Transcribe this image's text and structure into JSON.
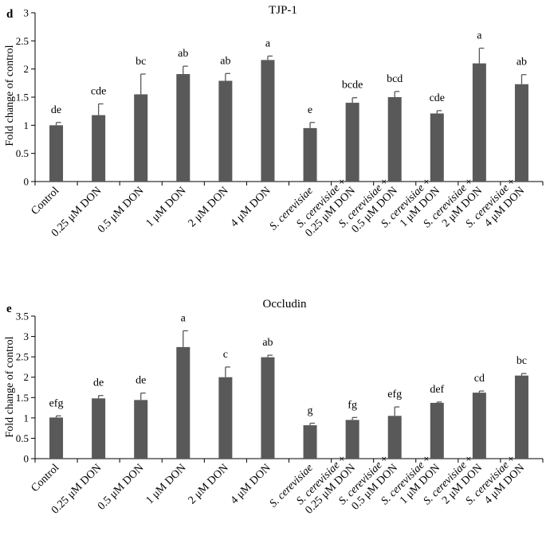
{
  "chart_data": [
    {
      "type": "bar",
      "panel_letter": "d",
      "title": "TJP-1",
      "ylabel": "Fold change of control",
      "ylim": [
        0,
        3
      ],
      "yticks": [
        "0",
        "0.5",
        "1",
        "1.5",
        "2",
        "2.5",
        "3"
      ],
      "grid": false,
      "bar_color": "#595959",
      "categories": [
        {
          "lines": [
            {
              "text": "Control",
              "italic": false
            }
          ]
        },
        {
          "lines": [
            {
              "text": "0.25 μM DON",
              "italic": false
            }
          ]
        },
        {
          "lines": [
            {
              "text": "0.5 μM DON",
              "italic": false
            }
          ]
        },
        {
          "lines": [
            {
              "text": "1 μM DON",
              "italic": false
            }
          ]
        },
        {
          "lines": [
            {
              "text": "2 μM DON",
              "italic": false
            }
          ]
        },
        {
          "lines": [
            {
              "text": "4 μM DON",
              "italic": false
            }
          ]
        },
        {
          "lines": [
            {
              "text": "S. cerevisiae",
              "italic": true
            }
          ]
        },
        {
          "lines": [
            {
              "text": "S. cerevisiae",
              "italic": true,
              "suffix": " +"
            },
            {
              "text": "0.25 μM DON",
              "italic": false
            }
          ]
        },
        {
          "lines": [
            {
              "text": "S. cerevisiae",
              "italic": true,
              "suffix": " +"
            },
            {
              "text": "0.5 μM DON",
              "italic": false
            }
          ]
        },
        {
          "lines": [
            {
              "text": "S. cerevisiae",
              "italic": true,
              "suffix": " +"
            },
            {
              "text": "1 μM DON",
              "italic": false
            }
          ]
        },
        {
          "lines": [
            {
              "text": "S. cerevisiae",
              "italic": true,
              "suffix": " +"
            },
            {
              "text": "2 μM DON",
              "italic": false
            }
          ]
        },
        {
          "lines": [
            {
              "text": "S. cerevisiae",
              "italic": true,
              "suffix": " +"
            },
            {
              "text": "4 μM DON",
              "italic": false
            }
          ]
        }
      ],
      "values": [
        1.0,
        1.18,
        1.55,
        1.91,
        1.79,
        2.16,
        0.95,
        1.4,
        1.5,
        1.21,
        2.1,
        1.73
      ],
      "errors": [
        0.05,
        0.2,
        0.36,
        0.14,
        0.13,
        0.07,
        0.1,
        0.09,
        0.1,
        0.05,
        0.27,
        0.17
      ],
      "significance": [
        "de",
        "cde",
        "bc",
        "ab",
        "ab",
        "a",
        "e",
        "bcde",
        "bcd",
        "cde",
        "a",
        "ab"
      ]
    },
    {
      "type": "bar",
      "panel_letter": "e",
      "title": "Occludin",
      "ylabel": "Fold change of control",
      "ylim": [
        0,
        3.5
      ],
      "yticks": [
        "0",
        "0.5",
        "1",
        "1.5",
        "2",
        "2.5",
        "3",
        "3.5"
      ],
      "grid": false,
      "bar_color": "#595959",
      "categories": [
        {
          "lines": [
            {
              "text": "Control",
              "italic": false
            }
          ]
        },
        {
          "lines": [
            {
              "text": "0.25 μM DON",
              "italic": false
            }
          ]
        },
        {
          "lines": [
            {
              "text": "0.5 μM DON",
              "italic": false
            }
          ]
        },
        {
          "lines": [
            {
              "text": "1 μM DON",
              "italic": false
            }
          ]
        },
        {
          "lines": [
            {
              "text": "2 μM DON",
              "italic": false
            }
          ]
        },
        {
          "lines": [
            {
              "text": "4 μM DON",
              "italic": false
            }
          ]
        },
        {
          "lines": [
            {
              "text": "S. cerevisiae",
              "italic": true
            }
          ]
        },
        {
          "lines": [
            {
              "text": "S. cerevisiae",
              "italic": true,
              "suffix": " +"
            },
            {
              "text": "0.25 μM DON",
              "italic": false
            }
          ]
        },
        {
          "lines": [
            {
              "text": "S. cerevisiae",
              "italic": true,
              "suffix": " +"
            },
            {
              "text": "0.5 μM DON",
              "italic": false
            }
          ]
        },
        {
          "lines": [
            {
              "text": "S. cerevisiae",
              "italic": true,
              "suffix": " +"
            },
            {
              "text": "1 μM DON",
              "italic": false
            }
          ]
        },
        {
          "lines": [
            {
              "text": "S. cerevisiae",
              "italic": true,
              "suffix": " +"
            },
            {
              "text": "2 μM DON",
              "italic": false
            }
          ]
        },
        {
          "lines": [
            {
              "text": "S. cerevisiae",
              "italic": true,
              "suffix": " +"
            },
            {
              "text": "4 μM DON",
              "italic": false
            }
          ]
        }
      ],
      "values": [
        1.01,
        1.48,
        1.44,
        2.74,
        2.0,
        2.49,
        0.82,
        0.95,
        1.05,
        1.37,
        1.62,
        2.04
      ],
      "errors": [
        0.04,
        0.07,
        0.17,
        0.4,
        0.25,
        0.05,
        0.05,
        0.06,
        0.22,
        0.02,
        0.04,
        0.05
      ],
      "significance": [
        "efg",
        "de",
        "de",
        "a",
        "c",
        "ab",
        "g",
        "fg",
        "efg",
        "def",
        "cd",
        "bc"
      ]
    }
  ]
}
